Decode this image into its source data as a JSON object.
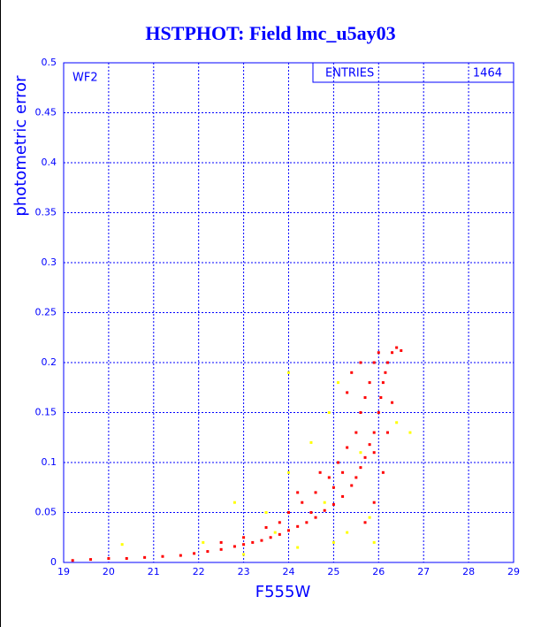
{
  "chart_data": {
    "type": "scatter",
    "title": "HSTPHOT: Field lmc_u5ay03",
    "x_label": "F555W",
    "y_label": "photometric error",
    "panel_label": "WF2",
    "stats_label": "ENTRIES",
    "stats_value": "1464",
    "xlim": [
      19,
      29
    ],
    "ylim": [
      0,
      0.5
    ],
    "xticks": [
      19,
      20,
      21,
      22,
      23,
      24,
      25,
      26,
      27,
      28,
      29
    ],
    "yticks": [
      0,
      0.05,
      0.1,
      0.15,
      0.2,
      0.25,
      0.3,
      0.35,
      0.4,
      0.45,
      0.5
    ],
    "grid": true,
    "series": [
      {
        "color": "#ff0000",
        "x": [
          19.2,
          19.6,
          20.0,
          20.4,
          20.8,
          21.2,
          21.6,
          21.9,
          22.2,
          22.5,
          22.8,
          23.0,
          23.2,
          23.4,
          23.6,
          23.8,
          24.0,
          24.2,
          24.4,
          24.6,
          24.8,
          25.0,
          25.2,
          25.4,
          25.5,
          25.6,
          25.7,
          25.8,
          25.9,
          26.0,
          26.05,
          26.1,
          26.15,
          26.2,
          26.3,
          26.4,
          26.5,
          23.0,
          23.5,
          24.0,
          24.3,
          24.6,
          24.9,
          25.1,
          25.3,
          25.5,
          25.6,
          25.7,
          25.8,
          25.9,
          26.0,
          25.6,
          25.4,
          25.3,
          24.7,
          24.2,
          25.9,
          25.7,
          26.1,
          25.9,
          26.2,
          26.3,
          22.5,
          23.8,
          24.5,
          25.0,
          25.2
        ],
        "y": [
          0.002,
          0.003,
          0.004,
          0.004,
          0.005,
          0.006,
          0.007,
          0.009,
          0.011,
          0.013,
          0.016,
          0.018,
          0.02,
          0.022,
          0.025,
          0.028,
          0.032,
          0.036,
          0.04,
          0.045,
          0.052,
          0.058,
          0.066,
          0.077,
          0.085,
          0.095,
          0.105,
          0.118,
          0.13,
          0.15,
          0.165,
          0.18,
          0.19,
          0.2,
          0.21,
          0.215,
          0.212,
          0.025,
          0.035,
          0.05,
          0.06,
          0.07,
          0.085,
          0.1,
          0.115,
          0.13,
          0.15,
          0.165,
          0.18,
          0.2,
          0.21,
          0.2,
          0.19,
          0.17,
          0.09,
          0.07,
          0.06,
          0.04,
          0.09,
          0.11,
          0.13,
          0.16,
          0.02,
          0.04,
          0.05,
          0.075,
          0.09
        ]
      },
      {
        "color": "#ffff00",
        "x": [
          20.3,
          22.1,
          22.8,
          23.5,
          24.0,
          24.5,
          24.9,
          25.1,
          24.0,
          25.0,
          25.3,
          25.8,
          25.9,
          26.4,
          26.7,
          24.2,
          23.0,
          25.6,
          24.8,
          23.7
        ],
        "y": [
          0.018,
          0.02,
          0.06,
          0.05,
          0.09,
          0.12,
          0.15,
          0.18,
          0.19,
          0.02,
          0.03,
          0.045,
          0.02,
          0.14,
          0.13,
          0.015,
          0.008,
          0.11,
          0.06,
          0.03
        ]
      }
    ]
  }
}
